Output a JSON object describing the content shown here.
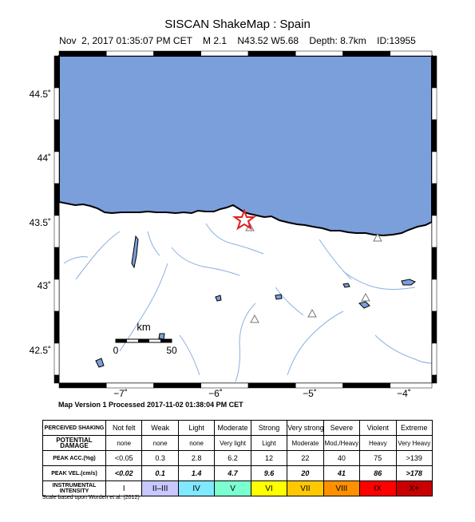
{
  "header": {
    "title": "SISCAN ShakeMap : Spain",
    "subtitle": "Nov  2, 2017 01:35:07 PM CET    M 2.1    N43.52 W5.68    Depth: 8.7km    ID:13955"
  },
  "map": {
    "lat_ticks": [
      "44.5˚",
      "44˚",
      "43.5˚",
      "43˚",
      "42.5˚"
    ],
    "lon_ticks": [
      "−7˚",
      "−6˚",
      "−5˚",
      "−4˚"
    ],
    "scale_bar": {
      "unit": "km",
      "start": "0",
      "end": "50"
    },
    "epicenter": {
      "lat": 43.52,
      "lon": -5.68
    },
    "colors": {
      "sea": "#7b9fdb",
      "land": "#ffffff",
      "rivers": "#8ab0e0",
      "epicenter": "#e02020"
    },
    "station_icon": "triangle-station-icon"
  },
  "version_line": "Map Version 1 Processed 2017-11-02 01:38:04 PM CET",
  "legend": {
    "perceived": {
      "label": "PERCEIVED SHAKING",
      "values": [
        "Not felt",
        "Weak",
        "Light",
        "Moderate",
        "Strong",
        "Very strong",
        "Severe",
        "Violent",
        "Extreme"
      ]
    },
    "damage": {
      "label": "POTENTIAL DAMAGE",
      "values": [
        "none",
        "none",
        "none",
        "Very light",
        "Light",
        "Moderate",
        "Mod./Heavy",
        "Heavy",
        "Very Heavy"
      ]
    },
    "acc": {
      "label": "PEAK ACC.(%g)",
      "values": [
        "<0.05",
        "0.3",
        "2.8",
        "6.2",
        "12",
        "22",
        "40",
        "75",
        ">139"
      ]
    },
    "vel": {
      "label": "PEAK VEL.(cm/s)",
      "values": [
        "<0.02",
        "0.1",
        "1.4",
        "4.7",
        "9.6",
        "20",
        "41",
        "86",
        ">178"
      ]
    },
    "intensity": {
      "label": "INSTRUMENTAL INTENSITY",
      "values": [
        "I",
        "II–III",
        "IV",
        "V",
        "VI",
        "VII",
        "VIII",
        "IX",
        "X+"
      ]
    },
    "intensity_colors": [
      "#ffffff",
      "#c8c8ff",
      "#80e8ff",
      "#7cffd0",
      "#ffff00",
      "#ffc800",
      "#ff9100",
      "#ff0000",
      "#c80000"
    ]
  },
  "footnote": "Scale based upon Worden et al. (2012)"
}
